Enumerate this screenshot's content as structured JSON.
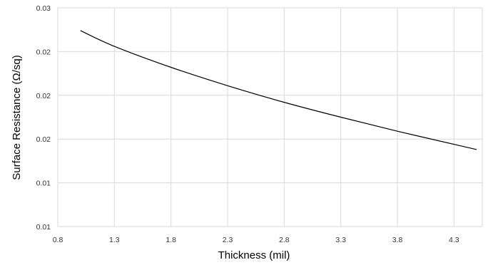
{
  "chart_data": {
    "type": "line",
    "xlabel": "Thickness (mil)",
    "ylabel": "Surface Resistance (Ω/sq)",
    "xlim": [
      0.8,
      4.55
    ],
    "ylim": [
      0.005,
      0.03
    ],
    "x_ticks": [
      0.8,
      1.3,
      1.8,
      2.3,
      2.8,
      3.3,
      3.8,
      4.3
    ],
    "x_tick_labels": [
      "0.8",
      "1.3",
      "1.8",
      "2.3",
      "2.8",
      "3.3",
      "3.8",
      "4.3"
    ],
    "y_ticks": [
      0.005,
      0.01,
      0.015,
      0.02,
      0.025,
      0.03
    ],
    "y_tick_labels": [
      "0.01",
      "0.01",
      "0.02",
      "0.02",
      "0.02",
      "0.03"
    ],
    "grid": true,
    "legend": "none",
    "series": [
      {
        "line_color": "#000000",
        "x": [
          1.0,
          1.3,
          1.8,
          2.3,
          2.8,
          3.3,
          3.8,
          4.3,
          4.5
        ],
        "y": [
          0.0274,
          0.0256,
          0.0232,
          0.0211,
          0.0192,
          0.0175,
          0.0159,
          0.0144,
          0.0138
        ]
      }
    ]
  }
}
